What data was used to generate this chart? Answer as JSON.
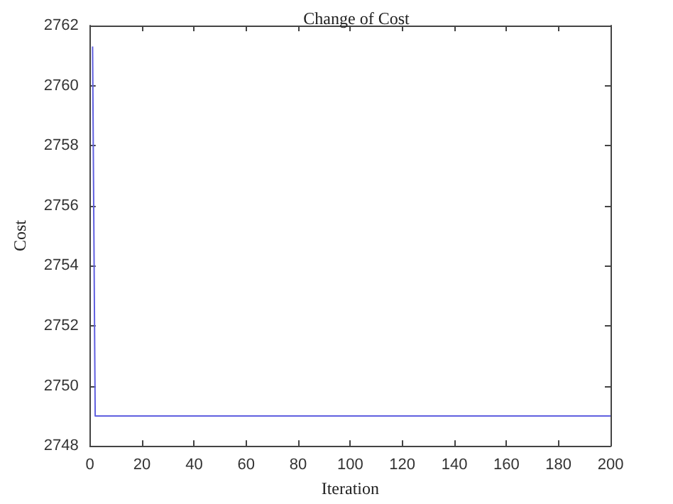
{
  "chart_data": {
    "type": "line",
    "title": "Change of Cost",
    "xlabel": "Iteration",
    "ylabel": "Cost",
    "x": [
      1,
      2,
      200
    ],
    "series": [
      {
        "color": "#6060e0",
        "values": [
          2761.3,
          2749,
          2749
        ]
      }
    ],
    "xlim": [
      0,
      200
    ],
    "xticks": [
      0,
      20,
      40,
      60,
      80,
      100,
      120,
      140,
      160,
      180,
      200
    ],
    "ylim": [
      2748,
      2762
    ],
    "yticks": [
      2748,
      2750,
      2752,
      2754,
      2756,
      2758,
      2760,
      2762
    ],
    "grid": false,
    "marker": "none",
    "line_style": "solid"
  }
}
